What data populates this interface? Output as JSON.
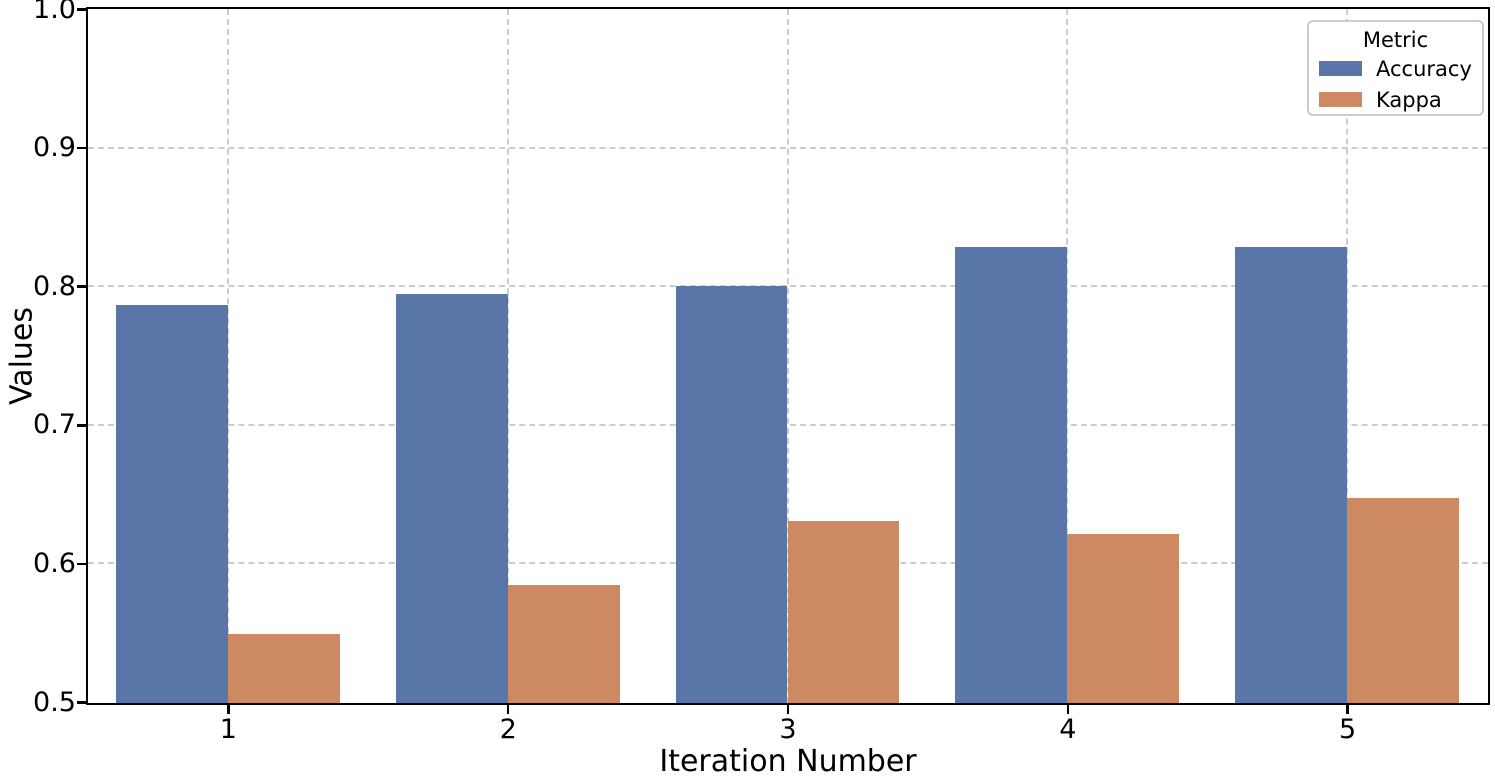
{
  "chart_data": {
    "type": "bar",
    "categories": [
      "1",
      "2",
      "3",
      "4",
      "5"
    ],
    "series": [
      {
        "name": "Accuracy",
        "color": "#5877a8",
        "values": [
          0.787,
          0.795,
          0.801,
          0.829,
          0.829
        ]
      },
      {
        "name": "Kappa",
        "color": "#cd8962",
        "values": [
          0.55,
          0.585,
          0.631,
          0.622,
          0.648
        ]
      }
    ],
    "title": "",
    "xlabel": "Iteration Number",
    "ylabel": "Values",
    "ylim": [
      0.5,
      1.0
    ],
    "yticks": [
      {
        "value": 0.5,
        "label": "0.5"
      },
      {
        "value": 0.6,
        "label": "0.6"
      },
      {
        "value": 0.7,
        "label": "0.7"
      },
      {
        "value": 0.8,
        "label": "0.8"
      },
      {
        "value": 0.9,
        "label": "0.9"
      },
      {
        "value": 1.0,
        "label": "1.0"
      }
    ],
    "legend": {
      "title": "Metric",
      "position": "upper right"
    },
    "grid": {
      "visible": true,
      "style": "dashed",
      "color": "#cccccc",
      "axisbelow": true
    },
    "bar_group_width_fraction": 0.8,
    "spine_color": "#000000"
  }
}
